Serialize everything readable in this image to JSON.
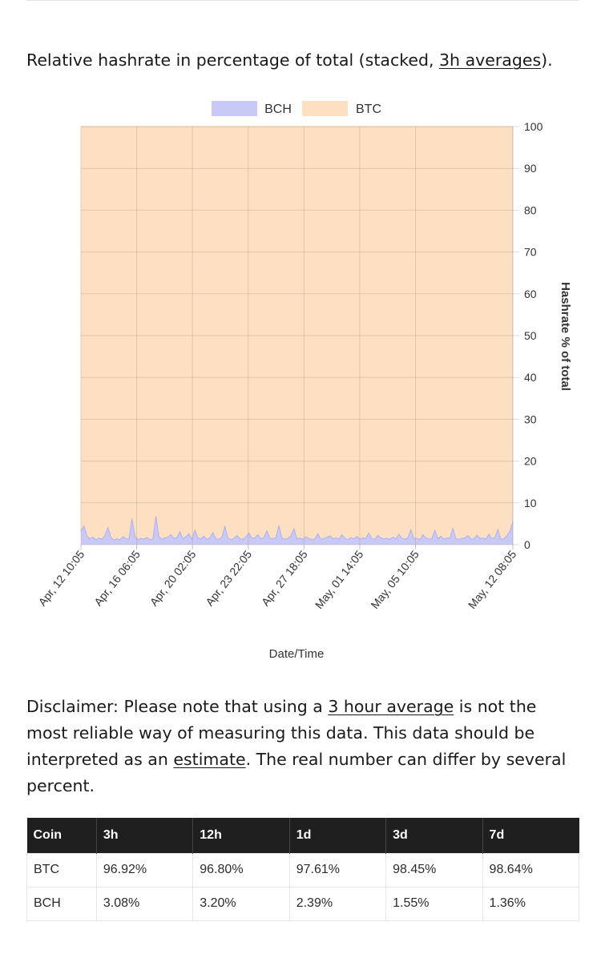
{
  "intro": {
    "before": "Relative hashrate in percentage of total (stacked, ",
    "link": "3h averages",
    "after": ")."
  },
  "chart_data": {
    "type": "area",
    "stacked": true,
    "legend": {
      "position": "top",
      "entries": [
        "BCH",
        "BTC"
      ]
    },
    "colors": {
      "BCH": "#c9c9f6",
      "BTC": "#fddfc2",
      "BTC_line": "#f2c9a0",
      "BCH_line": "#b0b0ee"
    },
    "xlabel": "Date/Time",
    "ylabel": "Hashrate % of total",
    "ylim": [
      0,
      100
    ],
    "yticks": [
      0,
      10,
      20,
      30,
      40,
      50,
      60,
      70,
      80,
      90,
      100
    ],
    "y_axis_side": "right",
    "grid": true,
    "xticks": [
      "Apr, 12 10:05",
      "Apr, 16 06:05",
      "Apr, 20 02:05",
      "Apr, 23 22:05",
      "Apr, 27 18:05",
      "May, 01 14:05",
      "May, 05 10:05",
      "May, 12 08:05"
    ],
    "series": [
      {
        "name": "BCH",
        "values": [
          3.2,
          4.5,
          2.1,
          1.4,
          1.8,
          1.2,
          1.6,
          1.3,
          2.2,
          4.1,
          1.7,
          1.1,
          1.4,
          1.2,
          1.9,
          1.5,
          1.3,
          6.2,
          2.0,
          1.2,
          1.5,
          1.3,
          1.7,
          1.2,
          1.4,
          6.8,
          1.9,
          1.3,
          1.6,
          1.8,
          2.4,
          1.5,
          1.7,
          3.1,
          1.4,
          1.9,
          2.6,
          1.3,
          3.5,
          1.6,
          1.4,
          2.0,
          1.2,
          1.7,
          2.9,
          1.4,
          1.3,
          1.8,
          4.4,
          1.6,
          1.2,
          1.5,
          2.2,
          1.4,
          1.3,
          1.9,
          2.8,
          1.5,
          1.6,
          2.4,
          1.3,
          1.8,
          3.3,
          1.5,
          1.4,
          1.7,
          4.6,
          1.6,
          1.3,
          1.5,
          2.1,
          3.8,
          1.4,
          1.6,
          1.3,
          1.9,
          1.5,
          1.2,
          1.4,
          2.6,
          1.3,
          1.5,
          1.8,
          2.1,
          1.4,
          1.6,
          1.3,
          2.4,
          1.5,
          1.2,
          1.7,
          1.4,
          2.0,
          1.3,
          1.6,
          1.5,
          2.8,
          1.4,
          1.3,
          2.2,
          1.6,
          1.4,
          1.5,
          1.3,
          1.8,
          1.4,
          2.5,
          1.5,
          1.3,
          1.6,
          3.6,
          1.4,
          1.5,
          1.2,
          2.4,
          1.6,
          1.3,
          1.5,
          3.4,
          1.4,
          2.0,
          1.3,
          1.6,
          1.5,
          3.9,
          1.4,
          1.3,
          1.5,
          1.6,
          2.2,
          1.4,
          1.3,
          2.3,
          1.5,
          1.6,
          1.3,
          2.5,
          1.4,
          1.7,
          3.6,
          1.3,
          1.4,
          2.1,
          3.2,
          5.5
        ]
      },
      {
        "name": "BTC",
        "values_note_stacked_to": 100
      }
    ]
  },
  "disclaimer": {
    "before": "Disclaimer: Please note that using a ",
    "link1": "3 hour average",
    "middle": " is not the most reliable way of measuring this data. This data should be interpreted as an ",
    "link2": "estimate",
    "after": ". The real number can differ by several percent."
  },
  "table": {
    "headers": [
      "Coin",
      "3h",
      "12h",
      "1d",
      "3d",
      "7d"
    ],
    "rows": [
      [
        "BTC",
        "96.92%",
        "96.80%",
        "97.61%",
        "98.45%",
        "98.64%"
      ],
      [
        "BCH",
        "3.08%",
        "3.20%",
        "2.39%",
        "1.55%",
        "1.36%"
      ]
    ]
  }
}
